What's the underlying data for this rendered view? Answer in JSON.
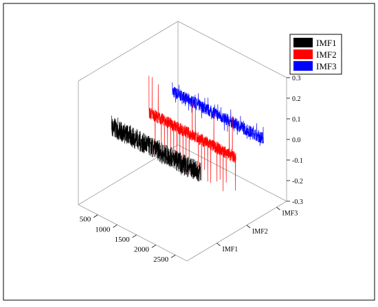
{
  "chart_data": {
    "type": "line",
    "title": "",
    "legend": {
      "placement": "top-right",
      "entries": [
        "IMF1",
        "IMF2",
        "IMF3"
      ]
    },
    "x_axis": {
      "label": "",
      "ticks": [
        "2500",
        "2000",
        "1500",
        "1000",
        "500"
      ],
      "range": [
        0,
        2800
      ]
    },
    "y_axis": {
      "label": "",
      "ticks": [
        "IMF1",
        "IMF2",
        "IMF3"
      ]
    },
    "z_axis": {
      "label": "",
      "ticks": [
        "0.3",
        "0.2",
        "0.1",
        "0.0",
        "-0.1",
        "-0.2",
        "-0.3"
      ],
      "range": [
        -0.3,
        0.3
      ]
    },
    "series": [
      {
        "name": "IMF1",
        "color": "#000000",
        "amplitude": 0.05,
        "spike_amplitude": 0.06,
        "baseline": 0.0
      },
      {
        "name": "IMF2",
        "color": "#ff0000",
        "amplitude": 0.03,
        "spike_amplitude": 0.2,
        "baseline": 0.0
      },
      {
        "name": "IMF3",
        "color": "#0000ff",
        "amplitude": 0.03,
        "spike_amplitude": 0.06,
        "baseline": 0.0
      }
    ],
    "grid": false
  }
}
